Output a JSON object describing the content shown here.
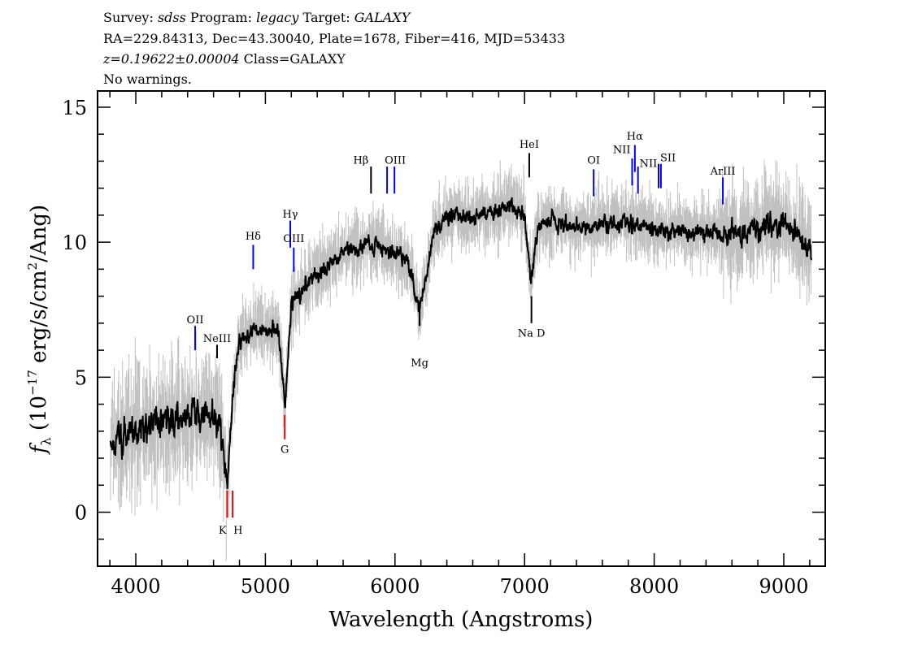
{
  "header": {
    "line1": {
      "survey_label": "Survey:",
      "survey": "sdss",
      "program_label": "Program:",
      "program": "legacy",
      "target_label": "Target:",
      "target": "GALAXY"
    },
    "line2": "RA=229.84313, Dec=43.30040, Plate=1678, Fiber=416, MJD=53433",
    "line3": {
      "redshift": "z=0.19622±0.00004",
      "class": "Class=GALAXY"
    },
    "line4": "No warnings."
  },
  "chart_data": {
    "type": "line",
    "xlabel": "Wavelength (Angstroms)",
    "ylabel": "f_λ (10^-17 erg/s/cm^2/Ang)",
    "ylabel_parts": {
      "f": "f",
      "sub": "λ",
      "pre": "(10",
      "exp": "−17",
      "mid": " erg/s/cm",
      "exp2": "2",
      "post": "/Ang)"
    },
    "xlim": [
      3705,
      9320
    ],
    "ylim": [
      -2.0,
      15.6
    ],
    "xticks": [
      4000,
      5000,
      6000,
      7000,
      8000,
      9000
    ],
    "yticks": [
      0,
      5,
      10,
      15
    ],
    "redshift": 0.19622,
    "colors": {
      "flux": "#000000",
      "error": "#c0c0c0",
      "emission": "#0000ff",
      "absorption": "#ff0000",
      "label_line": "#000000"
    },
    "flux_smoothed": {
      "x": [
        3800,
        3900,
        4000,
        4100,
        4200,
        4300,
        4400,
        4500,
        4600,
        4650,
        4706,
        4750,
        4800,
        4900,
        5000,
        5100,
        5150,
        5200,
        5300,
        5400,
        5500,
        5600,
        5700,
        5800,
        5900,
        6000,
        6100,
        6190,
        6300,
        6400,
        6500,
        6600,
        6700,
        6800,
        6900,
        7000,
        7050,
        7100,
        7200,
        7400,
        7600,
        7800,
        8000,
        8200,
        8400,
        8600,
        8800,
        9000,
        9100,
        9220
      ],
      "y": [
        2.5,
        2.8,
        3.0,
        3.2,
        3.3,
        3.4,
        3.5,
        3.6,
        3.6,
        3.2,
        1.0,
        4.5,
        6.3,
        6.8,
        6.7,
        6.8,
        4.0,
        7.6,
        8.4,
        8.8,
        9.3,
        9.6,
        9.8,
        10.0,
        9.8,
        9.6,
        9.3,
        7.5,
        10.3,
        11.0,
        11.0,
        10.9,
        11.0,
        11.2,
        11.4,
        11.0,
        8.5,
        10.6,
        10.8,
        10.6,
        10.7,
        10.8,
        10.5,
        10.4,
        10.4,
        10.3,
        10.5,
        10.7,
        10.3,
        9.5
      ]
    },
    "line_markers": [
      {
        "label": "OII",
        "wavelength": 4458,
        "color": "#0000ff",
        "y": [
          6.0,
          6.9
        ],
        "label_y": 7.0
      },
      {
        "label": "NeIII",
        "wavelength": 4627,
        "color": "#000000",
        "y": [
          5.7,
          6.2
        ],
        "label_y": 6.3
      },
      {
        "label": "Hδ",
        "wavelength": 4906,
        "color": "#0000ff",
        "y": [
          9.0,
          9.9
        ],
        "label_y": 10.1
      },
      {
        "label": "Hγ",
        "wavelength": 5192,
        "color": "#0000ff",
        "y": [
          9.8,
          10.8
        ],
        "label_y": 10.9
      },
      {
        "label": "OIII",
        "wavelength": 5219,
        "color": "#0000ff",
        "y": [
          8.9,
          9.8
        ],
        "label_y": 10.0
      },
      {
        "label": "Hβ",
        "wavelength": 5815,
        "color": "#000000",
        "y": [
          11.8,
          12.8
        ],
        "label_y": 12.9
      },
      {
        "label": "OIII",
        "wavelength": 5939,
        "color": "#0000ff",
        "y": [
          11.8,
          12.8
        ],
        "label_y": 12.9
      },
      {
        "label": "",
        "wavelength": 5996,
        "color": "#0000ff",
        "y": [
          11.8,
          12.8
        ]
      },
      {
        "label": "HeI",
        "wavelength": 7036,
        "color": "#000000",
        "y": [
          12.4,
          13.3
        ],
        "label_y": 13.5
      },
      {
        "label": "OI",
        "wavelength": 7533,
        "color": "#0000ff",
        "y": [
          11.7,
          12.7
        ],
        "label_y": 12.9
      },
      {
        "label": "NII",
        "wavelength": 7830,
        "color": "#0000ff",
        "y": [
          12.1,
          13.1
        ],
        "label_y": 13.3
      },
      {
        "label": "Hα",
        "wavelength": 7851,
        "color": "#0000ff",
        "y": [
          12.6,
          13.6
        ],
        "label_y": 13.8
      },
      {
        "label": "NII",
        "wavelength": 7875,
        "color": "#0000ff",
        "y": [
          11.8,
          12.8
        ],
        "label_y": 12.9
      },
      {
        "label": "SII",
        "wavelength": 8034,
        "color": "#0000ff",
        "y": [
          12.0,
          12.9
        ],
        "label_y": 13.0
      },
      {
        "label": "",
        "wavelength": 8052,
        "color": "#0000ff",
        "y": [
          12.0,
          12.9
        ]
      },
      {
        "label": "ArIII",
        "wavelength": 8530,
        "color": "#0000ff",
        "y": [
          11.4,
          12.4
        ],
        "label_y": 12.5
      },
      {
        "label": "K",
        "wavelength": 4706,
        "color": "#ff0000",
        "y": [
          -0.2,
          0.8
        ],
        "label_y": -0.8,
        "below": true
      },
      {
        "label": "H",
        "wavelength": 4747,
        "color": "#ff0000",
        "y": [
          -0.2,
          0.8
        ],
        "label_y": -0.8,
        "below": true
      },
      {
        "label": "G",
        "wavelength": 5149,
        "color": "#ff0000",
        "y": [
          2.7,
          3.6
        ],
        "label_y": 2.2,
        "below": true
      },
      {
        "label": "Mg",
        "wavelength": 6190,
        "color": "#000000",
        "y": [
          6.9,
          7.8
        ],
        "label_y": 5.4,
        "below": true
      },
      {
        "label": "Na D",
        "wavelength": 7053,
        "color": "#000000",
        "y": [
          7.0,
          8.0
        ],
        "label_y": 6.5,
        "below": true
      }
    ]
  }
}
